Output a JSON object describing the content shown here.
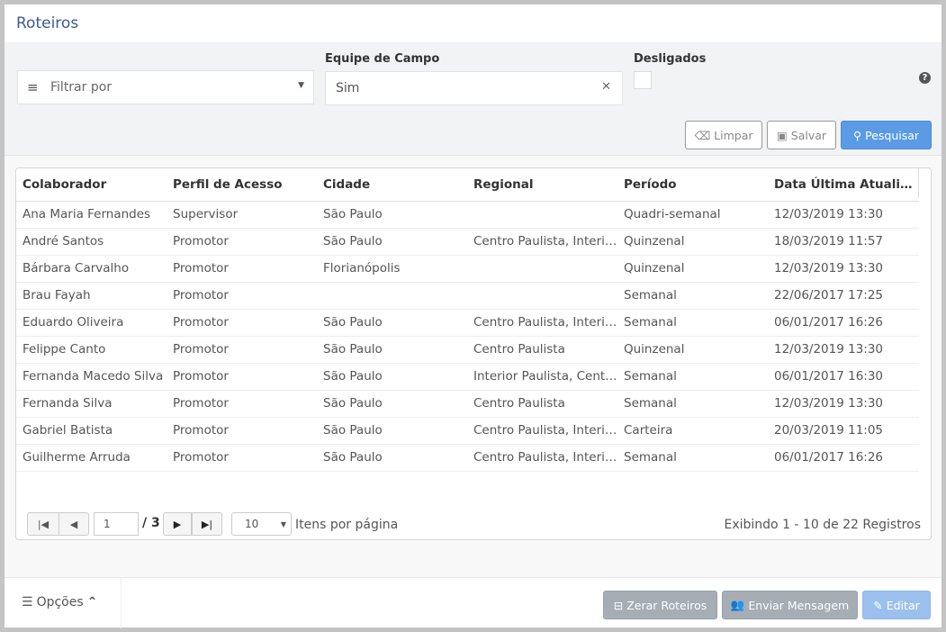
{
  "header": {
    "title": "Roteiros"
  },
  "filters": {
    "filter_placeholder": "Filtrar por",
    "equipe_label": "Equipe de Campo",
    "equipe_value": "Sim",
    "desligados_label": "Desligados",
    "desligados_checked": false
  },
  "actions": {
    "limpar": "Limpar",
    "salvar": "Salvar",
    "pesquisar": "Pesquisar"
  },
  "table": {
    "columns": [
      "Colaborador",
      "Perfil de Acesso",
      "Cidade",
      "Regional",
      "Período",
      "Data Última Atualiz..."
    ],
    "rows": [
      [
        "Ana Maria Fernandes",
        "Supervisor",
        "São Paulo",
        "",
        "Quadri-semanal",
        "12/03/2019 13:30"
      ],
      [
        "André Santos",
        "Promotor",
        "São Paulo",
        "Centro Paulista, Interior Paulista",
        "Quinzenal",
        "18/03/2019 11:57"
      ],
      [
        "Bárbara Carvalho",
        "Promotor",
        "Florianópolis",
        "",
        "Quinzenal",
        "12/03/2019 13:30"
      ],
      [
        "Brau Fayah",
        "Promotor",
        "",
        "",
        "Semanal",
        "22/06/2017 17:25"
      ],
      [
        "Eduardo Oliveira",
        "Promotor",
        "São Paulo",
        "Centro Paulista, Interior Paulista",
        "Semanal",
        "06/01/2017 16:26"
      ],
      [
        "Felippe Canto",
        "Promotor",
        "São Paulo",
        "Centro Paulista",
        "Quinzenal",
        "12/03/2019 13:30"
      ],
      [
        "Fernanda Macedo Silva",
        "Promotor",
        "São Paulo",
        "Interior Paulista, Centro Paulista",
        "Semanal",
        "06/01/2017 16:30"
      ],
      [
        "Fernanda Silva",
        "Promotor",
        "São Paulo",
        "Centro Paulista",
        "Semanal",
        "12/03/2019 13:30"
      ],
      [
        "Gabriel Batista",
        "Promotor",
        "São Paulo",
        "Centro Paulista, Interior Paulista",
        "Carteira",
        "20/03/2019 11:05"
      ],
      [
        "Guilherme Arruda",
        "Promotor",
        "São Paulo",
        "Centro Paulista, Interior Paulista",
        "Semanal",
        "06/01/2017 16:26"
      ]
    ]
  },
  "pagination": {
    "page": "1",
    "total": "/ 3",
    "page_size": "10",
    "per_page_label": "Itens por página",
    "summary": "Exibindo 1 - 10 de 22 Registros"
  },
  "footer": {
    "options": "Opções",
    "zerar": "Zerar Roteiros",
    "enviar": "Enviar Mensagem",
    "editar": "Editar"
  },
  "colors": {
    "accent": "#5b9be6",
    "title": "#3b5a99",
    "disabled_gray": "#a6adb4",
    "disabled_blue": "#9cc0ee"
  }
}
